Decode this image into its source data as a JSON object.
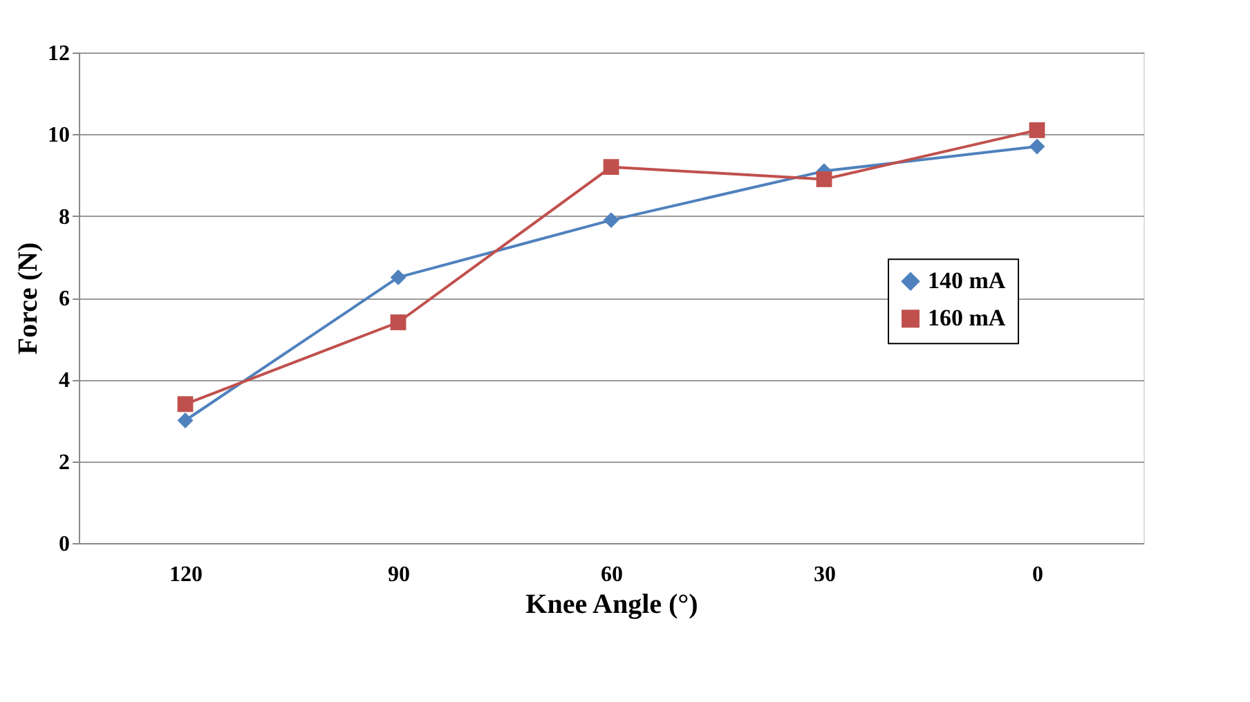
{
  "chart_data": {
    "type": "line",
    "xlabel": "Knee Angle (°)",
    "ylabel": "Force (N)",
    "categories": [
      "120",
      "90",
      "60",
      "30",
      "0"
    ],
    "series": [
      {
        "name": "140 mA",
        "color": "#4f81bd",
        "marker": "diamond",
        "values": [
          3.0,
          6.5,
          7.9,
          9.1,
          9.7
        ]
      },
      {
        "name": "160 mA",
        "color": "#c0504d",
        "marker": "square",
        "values": [
          3.4,
          5.4,
          9.2,
          8.9,
          10.1
        ]
      }
    ],
    "ylim": [
      0,
      12
    ],
    "yticks": [
      0,
      2,
      4,
      6,
      8,
      10,
      12
    ],
    "grid": "y",
    "legend": "right"
  }
}
